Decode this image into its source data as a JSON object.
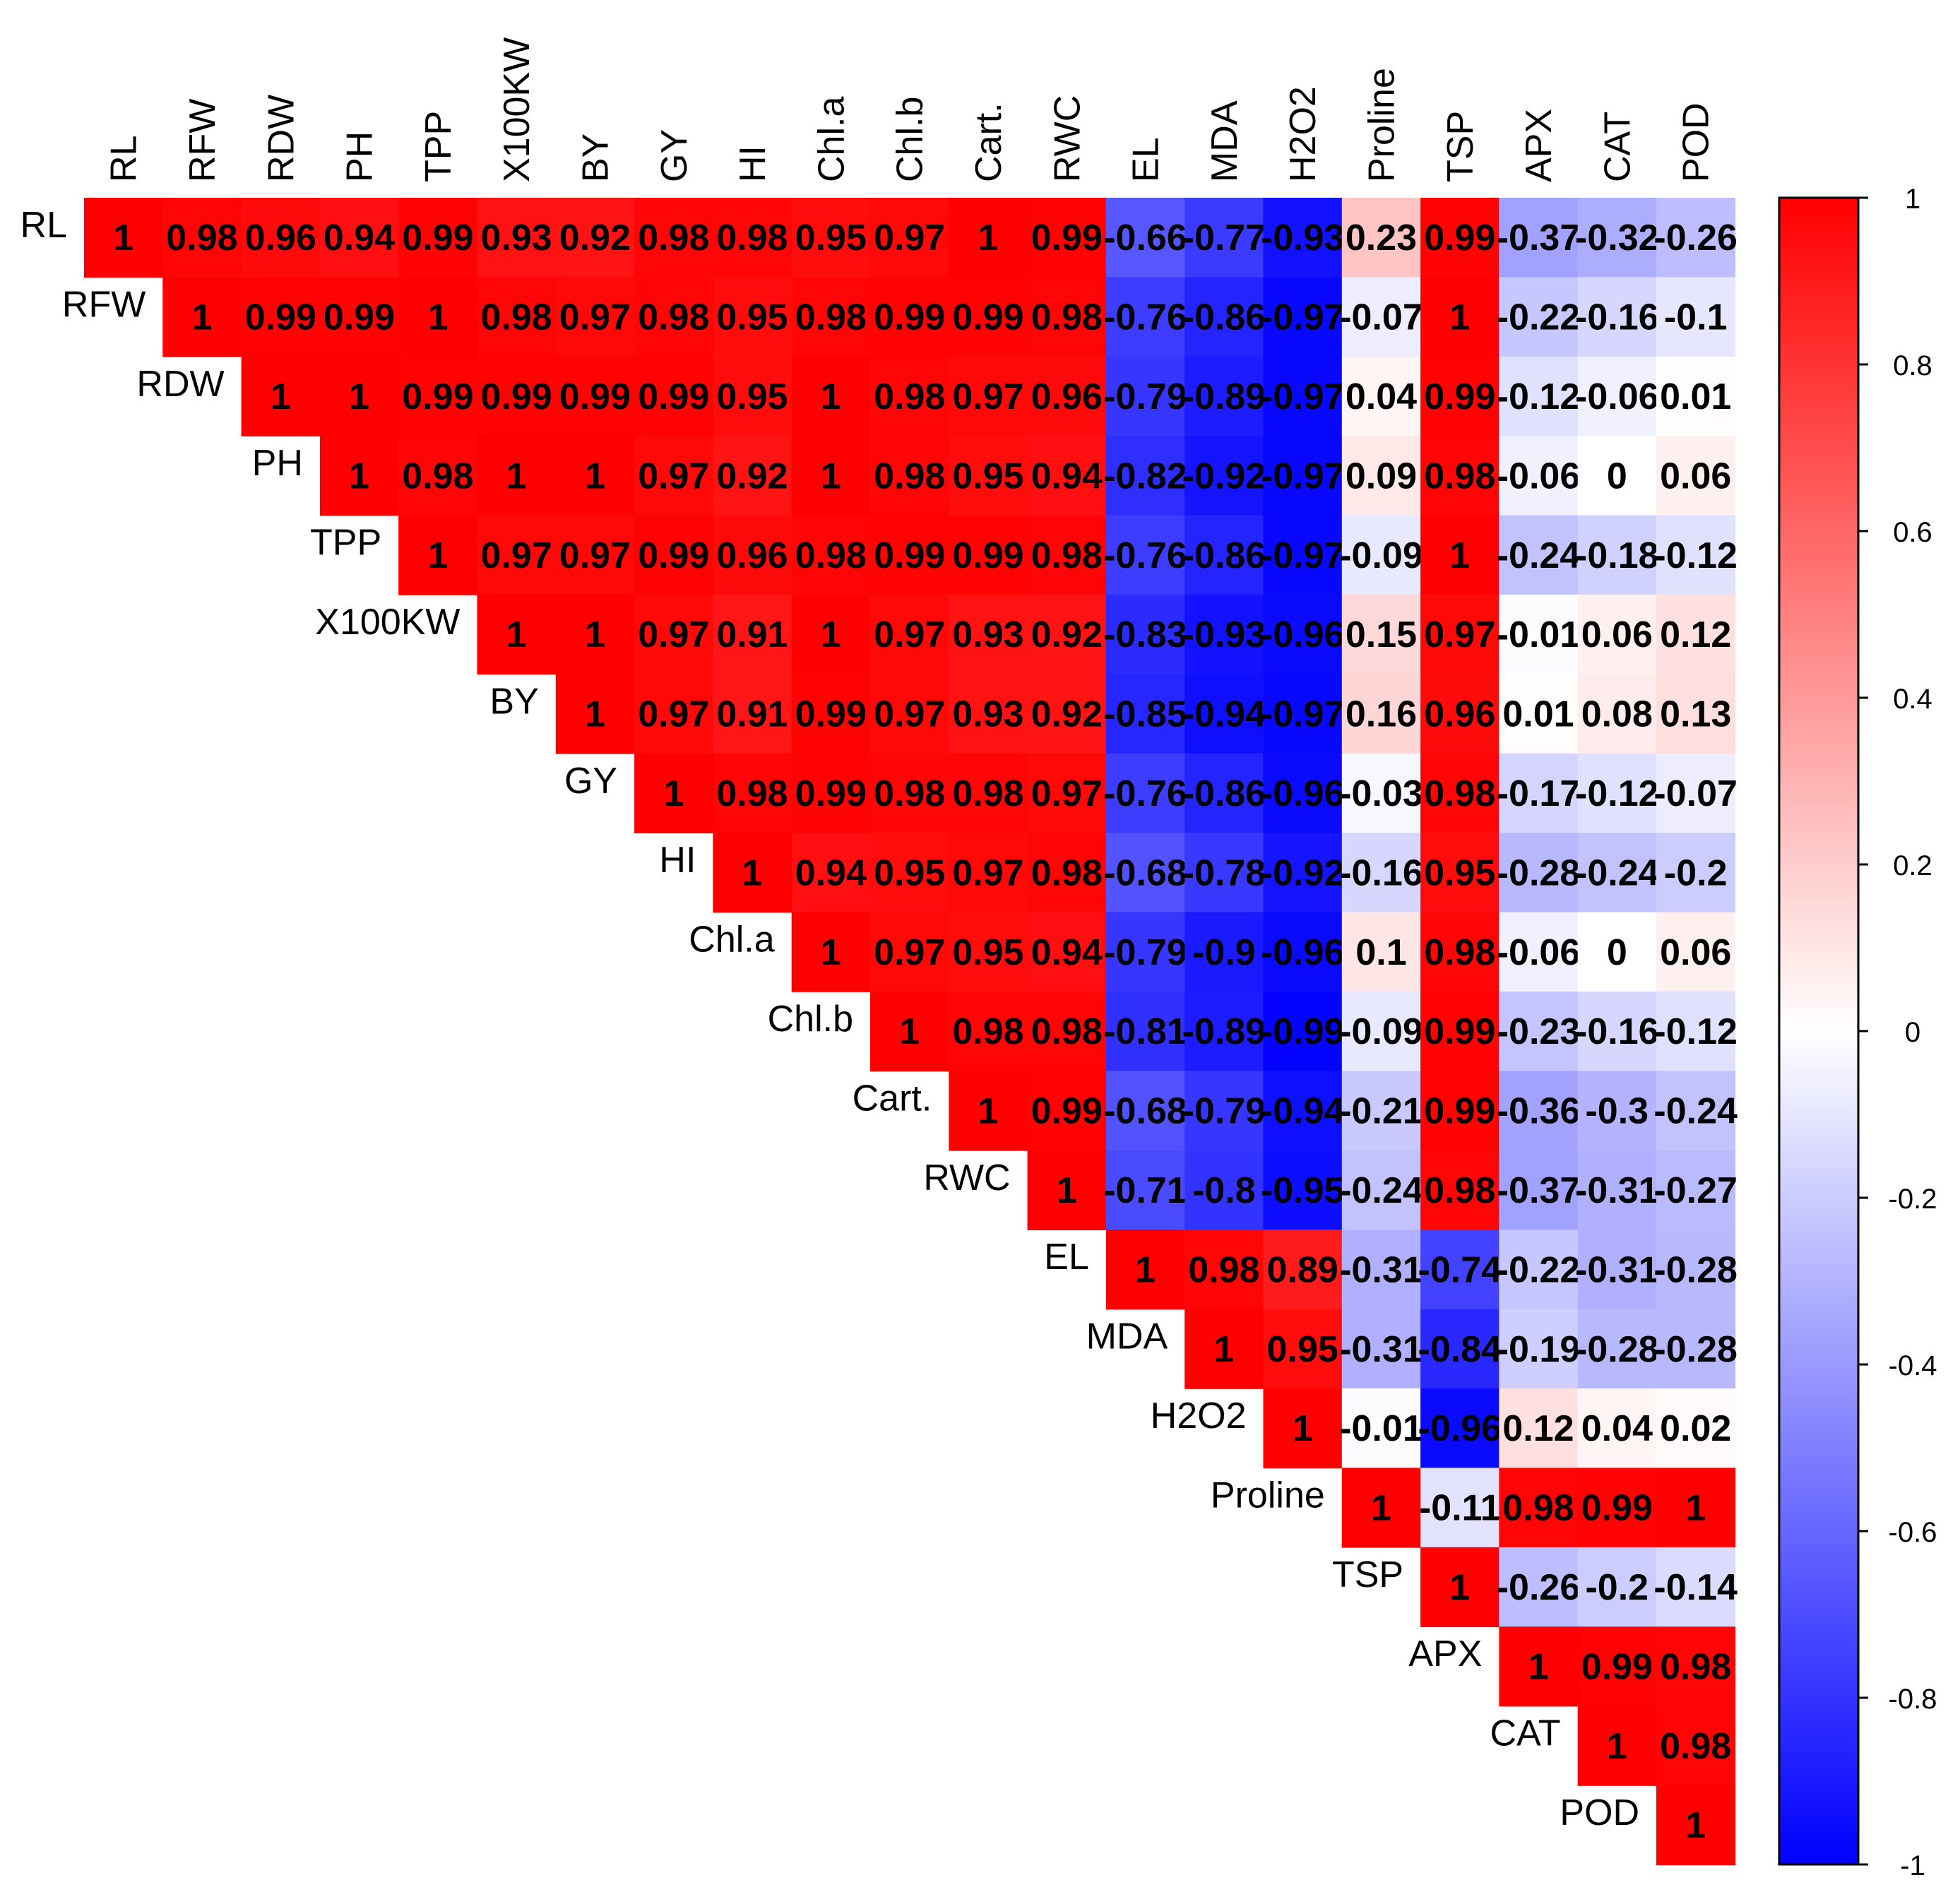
{
  "chart_data": {
    "type": "heatmap",
    "variables": [
      "RL",
      "RFW",
      "RDW",
      "PH",
      "TPP",
      "X100KW",
      "BY",
      "GY",
      "HI",
      "Chl.a",
      "Chl.b",
      "Cart.",
      "RWC",
      "EL",
      "MDA",
      "H2O2",
      "Proline",
      "TSP",
      "APX",
      "CAT",
      "POD"
    ],
    "layout": "upper-triangle",
    "matrix_upper": [
      [
        "1",
        "0.98",
        "0.96",
        "0.94",
        "0.99",
        "0.93",
        "0.92",
        "0.98",
        "0.98",
        "0.95",
        "0.97",
        "1",
        "0.99",
        "-0.66",
        "-0.77",
        "-0.93",
        "0.23",
        "0.99",
        "-0.37",
        "-0.32",
        "-0.26"
      ],
      [
        "1",
        "0.99",
        "0.99",
        "1",
        "0.98",
        "0.97",
        "0.98",
        "0.95",
        "0.98",
        "0.99",
        "0.99",
        "0.98",
        "-0.76",
        "-0.86",
        "-0.97",
        "-0.07",
        "1",
        "-0.22",
        "-0.16",
        "-0.1"
      ],
      [
        "1",
        "1",
        "0.99",
        "0.99",
        "0.99",
        "0.99",
        "0.95",
        "1",
        "0.98",
        "0.97",
        "0.96",
        "-0.79",
        "-0.89",
        "-0.97",
        "0.04",
        "0.99",
        "-0.12",
        "-0.06",
        "0.01"
      ],
      [
        "1",
        "0.98",
        "1",
        "1",
        "0.97",
        "0.92",
        "1",
        "0.98",
        "0.95",
        "0.94",
        "-0.82",
        "-0.92",
        "-0.97",
        "0.09",
        "0.98",
        "-0.06",
        "0",
        "0.06"
      ],
      [
        "1",
        "0.97",
        "0.97",
        "0.99",
        "0.96",
        "0.98",
        "0.99",
        "0.99",
        "0.98",
        "-0.76",
        "-0.86",
        "-0.97",
        "-0.09",
        "1",
        "-0.24",
        "-0.18",
        "-0.12"
      ],
      [
        "1",
        "1",
        "0.97",
        "0.91",
        "1",
        "0.97",
        "0.93",
        "0.92",
        "-0.83",
        "-0.93",
        "-0.96",
        "0.15",
        "0.97",
        "-0.01",
        "0.06",
        "0.12"
      ],
      [
        "1",
        "0.97",
        "0.91",
        "0.99",
        "0.97",
        "0.93",
        "0.92",
        "-0.85",
        "-0.94",
        "-0.97",
        "0.16",
        "0.96",
        "0.01",
        "0.08",
        "0.13"
      ],
      [
        "1",
        "0.98",
        "0.99",
        "0.98",
        "0.98",
        "0.97",
        "-0.76",
        "-0.86",
        "-0.96",
        "-0.03",
        "0.98",
        "-0.17",
        "-0.12",
        "-0.07"
      ],
      [
        "1",
        "0.94",
        "0.95",
        "0.97",
        "0.98",
        "-0.68",
        "-0.78",
        "-0.92",
        "-0.16",
        "0.95",
        "-0.28",
        "-0.24",
        "-0.2"
      ],
      [
        "1",
        "0.97",
        "0.95",
        "0.94",
        "-0.79",
        "-0.9",
        "-0.96",
        "0.1",
        "0.98",
        "-0.06",
        "0",
        "0.06"
      ],
      [
        "1",
        "0.98",
        "0.98",
        "-0.81",
        "-0.89",
        "-0.99",
        "-0.09",
        "0.99",
        "-0.23",
        "-0.16",
        "-0.12"
      ],
      [
        "1",
        "0.99",
        "-0.68",
        "-0.79",
        "-0.94",
        "-0.21",
        "0.99",
        "-0.36",
        "-0.3",
        "-0.24"
      ],
      [
        "1",
        "-0.71",
        "-0.8",
        "-0.95",
        "-0.24",
        "0.98",
        "-0.37",
        "-0.31",
        "-0.27"
      ],
      [
        "1",
        "0.98",
        "0.89",
        "-0.31",
        "-0.74",
        "-0.22",
        "-0.31",
        "-0.28"
      ],
      [
        "1",
        "0.95",
        "-0.31",
        "-0.84",
        "-0.19",
        "-0.28",
        "-0.28"
      ],
      [
        "1",
        "-0.01",
        "-0.96",
        "0.12",
        "0.04",
        "0.02"
      ],
      [
        "1",
        "-0.11",
        "0.98",
        "0.99",
        "1"
      ],
      [
        "1",
        "-0.26",
        "-0.2",
        "-0.14"
      ],
      [
        "1",
        "0.99",
        "0.98"
      ],
      [
        "1",
        "0.98"
      ],
      [
        "1"
      ]
    ],
    "colorbar": {
      "ticks": [
        "1",
        "0.8",
        "0.6",
        "0.4",
        "0.2",
        "0",
        "-0.2",
        "-0.4",
        "-0.6",
        "-0.8",
        "-1"
      ],
      "range": [
        -1,
        1
      ],
      "color_low": "#0000ff",
      "color_mid": "#ffffff",
      "color_high": "#ff0000"
    },
    "title": "",
    "xlabel": "",
    "ylabel": ""
  }
}
